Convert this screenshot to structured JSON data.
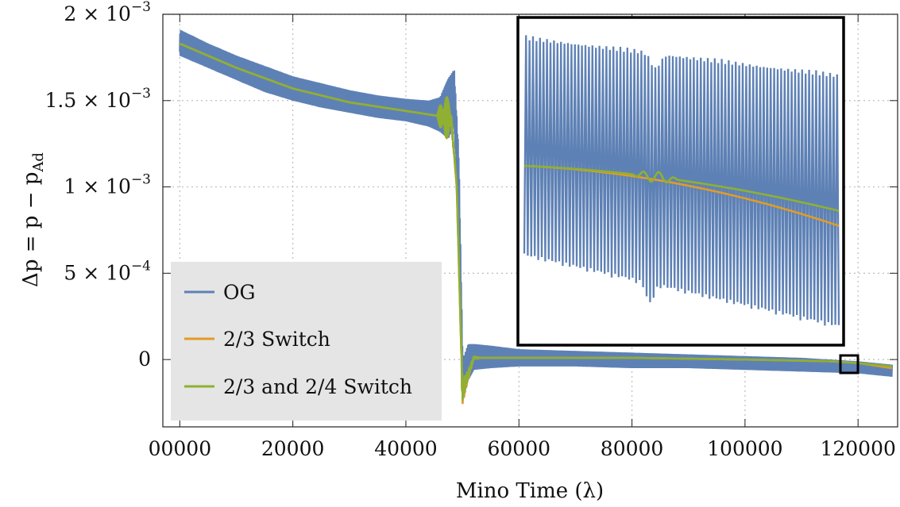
{
  "chart_data": {
    "type": "line",
    "xlabel": "Mino Time (λ)",
    "ylabel": "Δp = p − p_Ad",
    "ylabel_parts": {
      "main": "Δp = p − p",
      "sub": "Ad"
    },
    "xlim": [
      -3000,
      127000
    ],
    "ylim": [
      -0.00039,
      0.002
    ],
    "x_ticks": [
      0,
      20000,
      40000,
      60000,
      80000,
      100000,
      120000
    ],
    "x_tick_labels": [
      "00000",
      "20000",
      "40000",
      "60000",
      "80000",
      "100000",
      "120000"
    ],
    "y_ticks": [
      {
        "value": 0.002,
        "mantissa": "2",
        "exponent": "−3",
        "is_zero": false
      },
      {
        "value": 0.0015,
        "mantissa": "1.5",
        "exponent": "−3",
        "is_zero": false
      },
      {
        "value": 0.001,
        "mantissa": "1",
        "exponent": "−3",
        "is_zero": false
      },
      {
        "value": 0.0005,
        "mantissa": "5",
        "exponent": "−4",
        "is_zero": false
      },
      {
        "value": 0,
        "mantissa": "0",
        "exponent": "",
        "is_zero": true
      }
    ],
    "grid": true,
    "legend_position": "bottom-left",
    "series": [
      {
        "name": "OG",
        "color": "#5e81b5",
        "style": "oscillating band",
        "x": [
          0,
          5000,
          10000,
          15000,
          20000,
          25000,
          30000,
          35000,
          40000,
          44000,
          46000,
          47500,
          48500,
          49300,
          50000,
          51000,
          52000,
          55000,
          60000,
          70000,
          80000,
          90000,
          100000,
          110000,
          120000,
          126000
        ],
        "upper": [
          0.00191,
          0.00183,
          0.00176,
          0.0017,
          0.00164,
          0.0016,
          0.00156,
          0.00153,
          0.00151,
          0.0015,
          0.00152,
          0.00163,
          0.00168,
          0.0012,
          0.0,
          9e-05,
          9e-05,
          8e-05,
          6e-05,
          5e-05,
          4e-05,
          3e-05,
          2e-05,
          1e-05,
          -1e-05,
          -3e-05
        ],
        "lower": [
          0.00176,
          0.00169,
          0.00162,
          0.00155,
          0.0015,
          0.00146,
          0.00143,
          0.0014,
          0.00138,
          0.00135,
          0.00132,
          0.00128,
          0.00135,
          0.0009,
          -0.00026,
          -0.00012,
          -6e-05,
          -5e-05,
          -4e-05,
          -4e-05,
          -5e-05,
          -5e-05,
          -6e-05,
          -7e-05,
          -8e-05,
          -0.0001
        ]
      },
      {
        "name": "2/3 Switch",
        "color": "#e19c24",
        "x": [
          0,
          10000,
          20000,
          30000,
          40000,
          46000,
          47000,
          48000,
          49000,
          50000,
          52000,
          60000,
          80000,
          100000,
          115000,
          120000,
          126000
        ],
        "y": [
          0.00183,
          0.00169,
          0.00157,
          0.00149,
          0.00144,
          0.00141,
          0.0014,
          0.0014,
          0.001,
          -0.0002,
          1e-05,
          1e-05,
          1e-05,
          0.0,
          -1e-05,
          -2e-05,
          -5e-05
        ]
      },
      {
        "name": "2/3 and 2/4 Switch",
        "color": "#8fb032",
        "x": [
          0,
          10000,
          20000,
          30000,
          40000,
          46000,
          47000,
          48000,
          49000,
          50000,
          52000,
          60000,
          80000,
          100000,
          115000,
          120000,
          126000
        ],
        "y": [
          0.00183,
          0.00169,
          0.00157,
          0.00149,
          0.00144,
          0.00141,
          0.0014,
          0.00141,
          0.001,
          -0.00018,
          1e-05,
          1e-05,
          1e-05,
          0.0,
          -1e-05,
          -2e-05,
          -4e-05
        ]
      }
    ],
    "inset": {
      "description_region": "zoom of box near x=120000, y≈-0.00001",
      "zoom_box_x": [
        119000,
        121000
      ],
      "zoom_box_y": [
        -3.5e-05,
        1.5e-05
      ]
    }
  }
}
